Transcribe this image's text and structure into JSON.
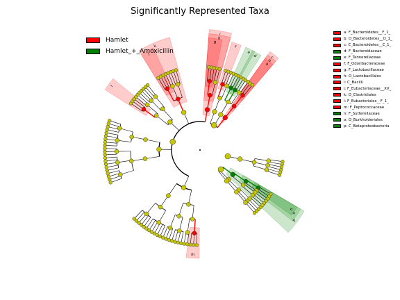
{
  "chart_data": {
    "type": "cladogram",
    "title": "Significantly Represented Taxa",
    "groups": [
      {
        "name": "Hamlet",
        "color": "#ff0000"
      },
      {
        "name": "Hamlet_+_Amoxicillin",
        "color": "#008000"
      }
    ],
    "node_color": "#c8c800",
    "taxa": [
      {
        "key": "a",
        "name": "F_Bacteroidetes__F_1_",
        "group": "Hamlet"
      },
      {
        "key": "b",
        "name": "O_Bacteroidetes__O_1_",
        "group": "Hamlet"
      },
      {
        "key": "c",
        "name": "C_Bacteroidetes__C_1_",
        "group": "Hamlet"
      },
      {
        "key": "d",
        "name": "F_Bacteroidaceae",
        "group": "Hamlet_+_Amoxicillin"
      },
      {
        "key": "e",
        "name": "F_Tannerellaceae",
        "group": "Hamlet_+_Amoxicillin"
      },
      {
        "key": "f",
        "name": "F_Odoribacteraceae",
        "group": "Hamlet"
      },
      {
        "key": "g",
        "name": "F_Lactobacillaceae",
        "group": "Hamlet"
      },
      {
        "key": "h",
        "name": "O_Lactobacillales",
        "group": "Hamlet"
      },
      {
        "key": "i",
        "name": "C_Bacilli",
        "group": "Hamlet"
      },
      {
        "key": "j",
        "name": "F_Eubacteriaceae__XV_",
        "group": "Hamlet"
      },
      {
        "key": "k",
        "name": "O_Clostridiales",
        "group": "Hamlet"
      },
      {
        "key": "l",
        "name": "F_Eubacteriales__F_1_",
        "group": "Hamlet"
      },
      {
        "key": "m",
        "name": "F_Peptococcaceae",
        "group": "Hamlet"
      },
      {
        "key": "n",
        "name": "F_Sutterellaceae",
        "group": "Hamlet_+_Amoxicillin"
      },
      {
        "key": "o",
        "name": "O_Burkholderiales",
        "group": "Hamlet_+_Amoxicillin"
      },
      {
        "key": "p",
        "name": "C_Betaproteobacteria",
        "group": "Hamlet_+_Amoxicillin"
      }
    ],
    "key_legend": [
      "a: F_Bacteroidetes__F_1_",
      "b: O_Bacteroidetes__O_1_",
      "c: C_Bacteroidetes__C_1_",
      "d: F_Bacteroidaceae",
      "e: F_Tannerellaceae",
      "f: F_Odoribacteraceae",
      "g: F_Lactobacillaceae",
      "h: O_Lactobacillales",
      "i: C_Bacilli",
      "j: F_Eubacteriaceae__XV_",
      "k: O_Clostridiales",
      "l: F_Eubacteriales__F_1_",
      "m: F_Peptococcaceae",
      "n: F_Sutterellaceae",
      "o: O_Burkholderiales",
      "p: C_Betaproteobacteria"
    ],
    "clade_labels": [
      {
        "key": "a",
        "group": "Hamlet",
        "angle": -10,
        "level": 5
      },
      {
        "key": "b",
        "group": "Hamlet",
        "angle": -10,
        "level": 4
      },
      {
        "key": "c",
        "group": "Hamlet",
        "angle": -10,
        "level": 3
      },
      {
        "key": "d",
        "group": "Hamlet_+_Amoxicillin",
        "angle": -31,
        "level": 5
      },
      {
        "key": "e",
        "group": "Hamlet_+_Amoxicillin",
        "angle": -56,
        "level": 5
      },
      {
        "key": "f",
        "group": "Hamlet",
        "angle": -70,
        "level": 5
      },
      {
        "key": "g",
        "group": "Hamlet",
        "angle": -80,
        "level": 5
      },
      {
        "key": "h",
        "group": "Hamlet",
        "angle": -80,
        "level": 4
      },
      {
        "key": "i",
        "group": "Hamlet",
        "angle": -80,
        "level": 3
      },
      {
        "key": "j",
        "group": "Hamlet",
        "angle": -112,
        "level": 5
      },
      {
        "key": "k",
        "group": "Hamlet",
        "angle": -102,
        "level": 4
      },
      {
        "key": "l",
        "group": "Hamlet",
        "angle": -131,
        "level": 5
      },
      {
        "key": "m",
        "group": "Hamlet",
        "angle": 104,
        "level": 5
      },
      {
        "key": "n",
        "group": "Hamlet_+_Amoxicillin",
        "angle": 55,
        "level": 5
      },
      {
        "key": "o",
        "group": "Hamlet_+_Amoxicillin",
        "angle": 55,
        "level": 4
      },
      {
        "key": "p",
        "group": "Hamlet_+_Amoxicillin",
        "angle": 55,
        "level": 3
      }
    ]
  }
}
